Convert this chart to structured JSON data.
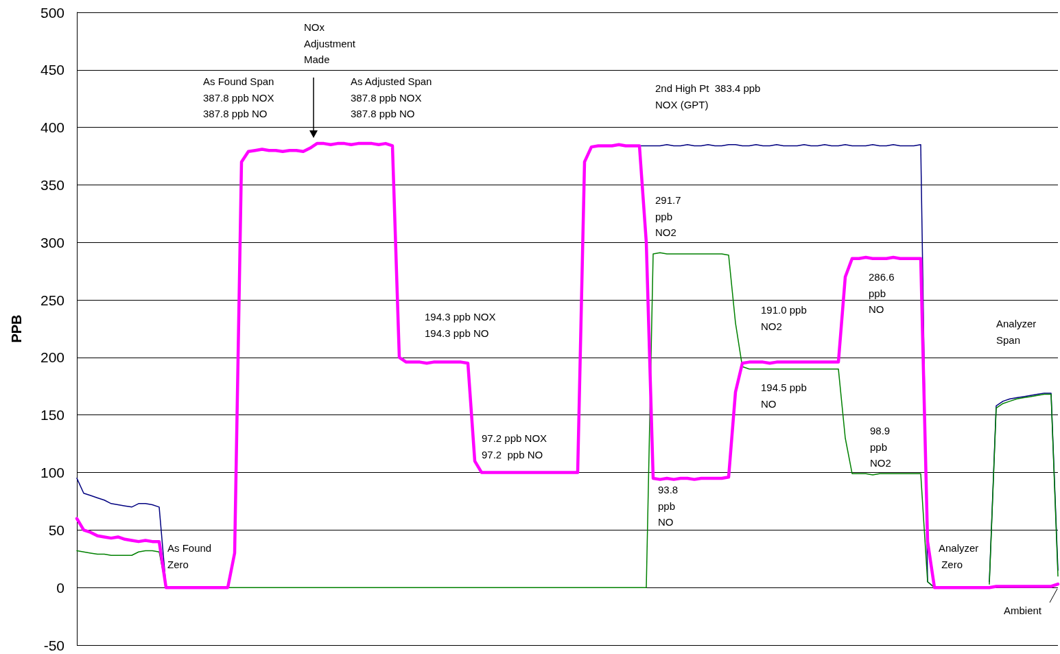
{
  "chart_data": {
    "type": "line",
    "ylabel": "PPB",
    "categories": [
      null,
      null,
      null,
      null,
      null,
      null,
      null,
      null,
      null,
      null,
      null,
      null,
      null,
      null,
      null,
      null,
      null,
      null,
      null,
      null,
      null,
      null,
      null,
      null,
      null,
      null,
      null,
      null,
      null,
      null,
      null,
      null,
      null,
      null,
      null,
      null,
      null,
      null,
      null,
      null,
      null,
      null,
      null,
      null,
      null,
      null,
      null,
      null,
      null,
      null,
      null,
      null,
      null,
      null,
      null,
      null,
      null,
      null,
      null,
      null,
      null,
      null,
      null,
      null,
      null,
      null,
      null,
      null,
      null,
      null,
      null,
      null,
      null,
      null,
      null,
      null,
      null,
      null,
      null,
      null,
      null,
      null,
      null,
      null,
      null,
      null,
      null,
      null,
      null,
      null,
      null,
      null,
      null,
      null,
      null,
      null,
      null,
      null,
      null,
      null,
      null,
      null,
      null,
      null,
      null,
      null,
      null,
      null,
      null,
      null,
      null,
      null,
      null,
      null,
      null,
      null,
      null,
      null,
      null,
      null,
      null,
      null,
      null,
      null,
      null,
      null,
      null,
      null,
      null,
      null,
      null,
      null,
      null,
      null,
      null,
      null,
      null,
      null,
      null,
      null,
      null,
      null,
      null,
      null
    ],
    "series": [
      {
        "color": "#000080",
        "values": [
          95,
          82,
          80,
          78,
          76,
          73,
          72,
          71,
          70,
          73,
          73,
          72,
          70,
          1,
          null,
          null,
          null,
          null,
          null,
          null,
          null,
          null,
          null,
          null,
          null,
          null,
          null,
          null,
          null,
          null,
          null,
          null,
          null,
          null,
          null,
          null,
          null,
          null,
          null,
          null,
          null,
          null,
          null,
          null,
          null,
          null,
          null,
          null,
          null,
          null,
          null,
          null,
          null,
          null,
          null,
          null,
          null,
          null,
          null,
          null,
          null,
          null,
          null,
          null,
          null,
          null,
          null,
          null,
          null,
          null,
          null,
          null,
          null,
          null,
          null,
          null,
          null,
          null,
          null,
          null,
          null,
          null,
          384,
          384,
          384,
          384,
          385,
          384,
          384,
          385,
          384,
          384,
          385,
          384,
          384,
          385,
          385,
          384,
          384,
          385,
          384,
          384,
          385,
          384,
          384,
          384,
          385,
          384,
          384,
          385,
          384,
          384,
          385,
          384,
          384,
          384,
          385,
          384,
          384,
          385,
          384,
          384,
          384,
          385,
          5,
          0,
          null,
          null,
          null,
          null,
          null,
          null,
          null,
          5,
          158,
          162,
          164,
          165,
          166,
          167,
          168,
          169,
          169,
          15
        ]
      },
      {
        "color": "#ff00ff",
        "values": [
          60,
          50,
          48,
          45,
          44,
          43,
          44,
          42,
          41,
          40,
          41,
          40,
          40,
          0,
          0,
          0,
          0,
          0,
          0,
          0,
          0,
          0,
          0,
          30,
          370,
          379,
          380,
          381,
          380,
          380,
          379,
          380,
          380,
          379,
          382,
          386,
          386,
          385,
          386,
          386,
          385,
          386,
          386,
          386,
          385,
          386,
          384,
          200,
          196,
          196,
          196,
          195,
          196,
          196,
          196,
          196,
          196,
          195,
          110,
          100,
          100,
          100,
          100,
          100,
          100,
          100,
          100,
          100,
          100,
          100,
          100,
          100,
          100,
          100,
          370,
          383,
          384,
          384,
          384,
          385,
          384,
          384,
          384,
          300,
          95,
          94,
          95,
          94,
          95,
          95,
          94,
          95,
          95,
          95,
          95,
          96,
          170,
          195,
          196,
          196,
          196,
          195,
          196,
          196,
          196,
          196,
          196,
          196,
          196,
          196,
          196,
          196,
          270,
          286,
          286,
          287,
          286,
          286,
          286,
          287,
          286,
          286,
          286,
          286,
          40,
          0,
          0,
          0,
          0,
          0,
          0,
          0,
          0,
          0,
          1,
          1,
          1,
          1,
          1,
          1,
          1,
          1,
          1,
          3
        ]
      },
      {
        "color": "#008000",
        "values": [
          32,
          31,
          30,
          29,
          29,
          28,
          28,
          28,
          28,
          31,
          32,
          32,
          31,
          0,
          null,
          null,
          null,
          null,
          null,
          null,
          null,
          null,
          0,
          0,
          0,
          0,
          0,
          0,
          0,
          0,
          0,
          0,
          0,
          0,
          0,
          0,
          0,
          0,
          0,
          0,
          0,
          0,
          0,
          0,
          0,
          0,
          0,
          0,
          0,
          0,
          0,
          0,
          0,
          0,
          0,
          0,
          0,
          0,
          0,
          0,
          0,
          0,
          0,
          0,
          0,
          0,
          0,
          0,
          0,
          0,
          0,
          0,
          0,
          0,
          0,
          0,
          0,
          0,
          0,
          0,
          0,
          0,
          0,
          0,
          290,
          291,
          290,
          290,
          290,
          290,
          290,
          290,
          290,
          290,
          290,
          289,
          230,
          192,
          190,
          190,
          190,
          190,
          190,
          190,
          190,
          190,
          190,
          190,
          190,
          190,
          190,
          190,
          130,
          99,
          99,
          99,
          98,
          99,
          99,
          99,
          99,
          99,
          99,
          99,
          5,
          0,
          null,
          null,
          null,
          null,
          null,
          null,
          null,
          3,
          156,
          160,
          162,
          164,
          165,
          166,
          167,
          168,
          168,
          10
        ]
      }
    ],
    "ylim": [
      -50,
      500
    ],
    "yticks": [
      -50,
      0,
      50,
      100,
      150,
      200,
      250,
      300,
      350,
      400,
      450,
      500
    ],
    "grid": "y",
    "marker": "none",
    "line_style": "solid",
    "annotations": [
      "NOx\nAdjustment\nMade",
      "As Found Span\n387.8 ppb NOX\n387.8 ppb NO",
      "As Adjusted Span\n387.8 ppb NOX\n387.8 ppb NO",
      "2nd High Pt  383.4 ppb\nNOX (GPT)",
      "291.7\nppb\nNO2",
      "194.3 ppb NOX\n194.3 ppb NO",
      "286.6\nppb\nNO",
      "191.0 ppb\nNO2",
      "Analyzer\nSpan",
      "194.5 ppb\nNO",
      "97.2 ppb NOX\n97.2  ppb NO",
      "98.9\nppb\nNO2",
      "93.8\nppb\nNO",
      "As Found\nZero",
      "Analyzer\n Zero",
      "Ambient"
    ]
  }
}
